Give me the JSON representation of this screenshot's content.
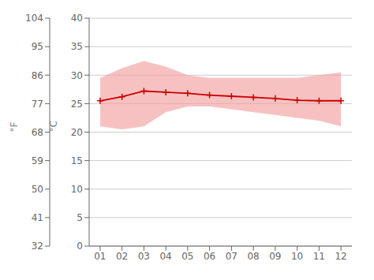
{
  "chart_data": {
    "type": "line",
    "x": [
      1,
      2,
      3,
      4,
      5,
      6,
      7,
      8,
      9,
      10,
      11,
      12
    ],
    "xlim": [
      0.5,
      12.5
    ],
    "xticks": [
      {
        "value": 1,
        "label": "01"
      },
      {
        "value": 2,
        "label": "02"
      },
      {
        "value": 3,
        "label": "03"
      },
      {
        "value": 4,
        "label": "04"
      },
      {
        "value": 5,
        "label": "05"
      },
      {
        "value": 6,
        "label": "06"
      },
      {
        "value": 7,
        "label": "07"
      },
      {
        "value": 8,
        "label": "08"
      },
      {
        "value": 9,
        "label": "09"
      },
      {
        "value": 10,
        "label": "10"
      },
      {
        "value": 11,
        "label": "11"
      },
      {
        "value": 12,
        "label": "12"
      }
    ],
    "ylabel": "°C",
    "ylim": [
      0,
      40
    ],
    "yticks": [
      0,
      5,
      10,
      15,
      20,
      25,
      30,
      35,
      40
    ],
    "y2label": "°F",
    "y2lim": [
      32,
      104
    ],
    "y2ticks": [
      32,
      41,
      50,
      59,
      68,
      77,
      86,
      95,
      104
    ],
    "grid": true,
    "series": [
      {
        "type": "band",
        "color": "#f5a0a0",
        "min": [
          21.0,
          20.5,
          21.0,
          23.5,
          24.5,
          24.5,
          24.0,
          23.5,
          23.0,
          22.5,
          22.0,
          21.0
        ],
        "max": [
          29.5,
          31.2,
          32.5,
          31.5,
          30.0,
          29.5,
          29.5,
          29.5,
          29.5,
          29.5,
          30.0,
          30.5
        ]
      },
      {
        "type": "line",
        "color": "#cc0000",
        "marker": "plus",
        "values": [
          25.5,
          26.2,
          27.2,
          27.0,
          26.8,
          26.5,
          26.3,
          26.1,
          25.9,
          25.6,
          25.5,
          25.5
        ]
      }
    ]
  }
}
